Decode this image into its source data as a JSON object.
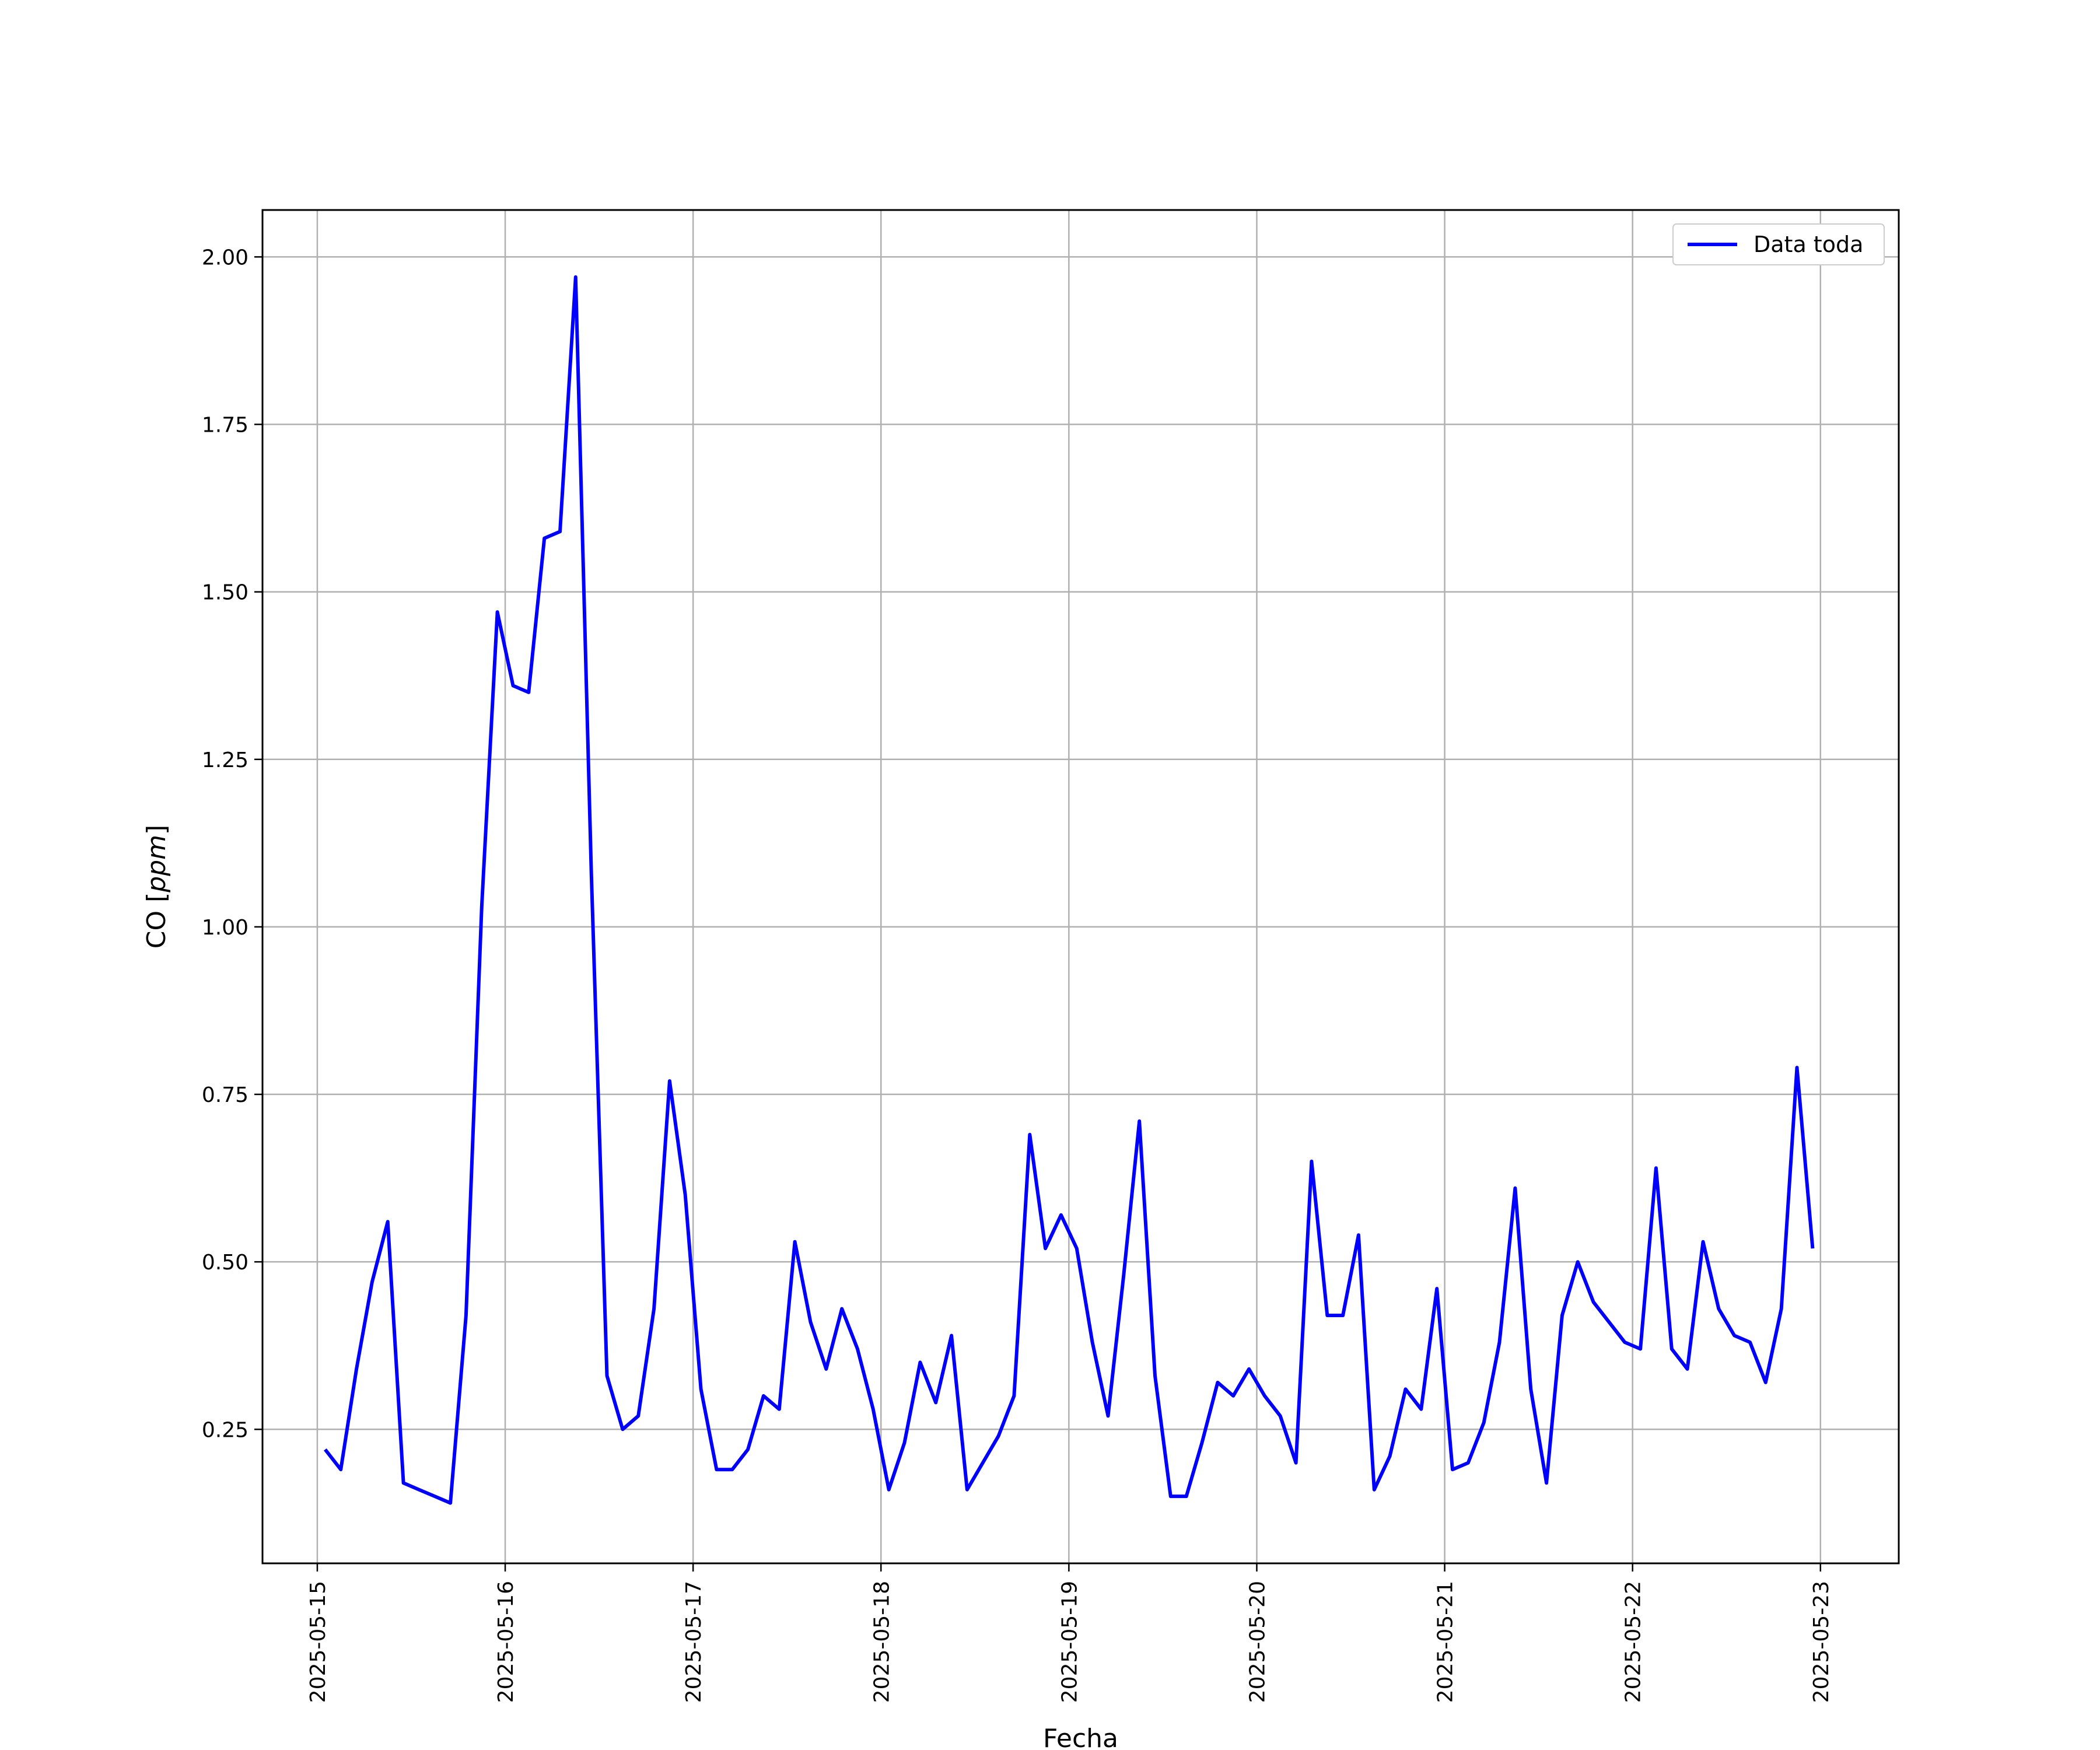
{
  "chart_data": {
    "type": "line",
    "xlabel": "Fecha",
    "ylabel_prefix": "CO [",
    "ylabel_unit": "ppm",
    "ylabel_suffix": "]",
    "grid": true,
    "legend_position": "top-right",
    "xlim": [
      "2025-05-14 17:00",
      "2025-05-23 10:00"
    ],
    "ylim": [
      0.05,
      2.07
    ],
    "x_ticks": [
      "2025-05-15",
      "2025-05-16",
      "2025-05-17",
      "2025-05-18",
      "2025-05-19",
      "2025-05-20",
      "2025-05-21",
      "2025-05-22",
      "2025-05-23"
    ],
    "y_ticks": [
      "0.25",
      "0.50",
      "0.75",
      "1.00",
      "1.25",
      "1.50",
      "1.75",
      "2.00"
    ],
    "series": [
      {
        "name": "Data toda",
        "color": "#0000ff",
        "x": [
          "2025-05-15 01:00",
          "2025-05-15 03:00",
          "2025-05-15 05:00",
          "2025-05-15 07:00",
          "2025-05-15 09:00",
          "2025-05-15 11:00",
          "2025-05-15 13:00",
          "2025-05-15 15:00",
          "2025-05-15 17:00",
          "2025-05-15 19:00",
          "2025-05-15 21:00",
          "2025-05-15 23:00",
          "2025-05-16 01:00",
          "2025-05-16 03:00",
          "2025-05-16 05:00",
          "2025-05-16 07:00",
          "2025-05-16 09:00",
          "2025-05-16 11:00",
          "2025-05-16 13:00",
          "2025-05-16 15:00",
          "2025-05-16 17:00",
          "2025-05-16 19:00",
          "2025-05-16 21:00",
          "2025-05-16 23:00",
          "2025-05-17 01:00",
          "2025-05-17 03:00",
          "2025-05-17 05:00",
          "2025-05-17 07:00",
          "2025-05-17 09:00",
          "2025-05-17 11:00",
          "2025-05-17 13:00",
          "2025-05-17 15:00",
          "2025-05-17 17:00",
          "2025-05-17 19:00",
          "2025-05-17 21:00",
          "2025-05-17 23:00",
          "2025-05-18 01:00",
          "2025-05-18 03:00",
          "2025-05-18 05:00",
          "2025-05-18 07:00",
          "2025-05-18 09:00",
          "2025-05-18 11:00",
          "2025-05-18 13:00",
          "2025-05-18 15:00",
          "2025-05-18 17:00",
          "2025-05-18 19:00",
          "2025-05-18 21:00",
          "2025-05-18 23:00",
          "2025-05-19 01:00",
          "2025-05-19 03:00",
          "2025-05-19 05:00",
          "2025-05-19 07:00",
          "2025-05-19 09:00",
          "2025-05-19 11:00",
          "2025-05-19 13:00",
          "2025-05-19 15:00",
          "2025-05-19 17:00",
          "2025-05-19 19:00",
          "2025-05-19 21:00",
          "2025-05-19 23:00",
          "2025-05-20 01:00",
          "2025-05-20 03:00",
          "2025-05-20 05:00",
          "2025-05-20 07:00",
          "2025-05-20 09:00",
          "2025-05-20 11:00",
          "2025-05-20 13:00",
          "2025-05-20 15:00",
          "2025-05-20 17:00",
          "2025-05-20 19:00",
          "2025-05-20 21:00",
          "2025-05-20 23:00",
          "2025-05-21 01:00",
          "2025-05-21 03:00",
          "2025-05-21 05:00",
          "2025-05-21 07:00",
          "2025-05-21 09:00",
          "2025-05-21 11:00",
          "2025-05-21 13:00",
          "2025-05-21 15:00",
          "2025-05-21 17:00",
          "2025-05-21 19:00",
          "2025-05-21 21:00",
          "2025-05-21 23:00",
          "2025-05-22 01:00",
          "2025-05-22 03:00",
          "2025-05-22 05:00",
          "2025-05-22 07:00",
          "2025-05-22 09:00",
          "2025-05-22 11:00",
          "2025-05-22 13:00",
          "2025-05-22 15:00",
          "2025-05-22 17:00",
          "2025-05-22 19:00",
          "2025-05-22 21:00",
          "2025-05-22 23:00"
        ],
        "y": [
          0.22,
          0.19,
          0.34,
          0.47,
          0.56,
          0.17,
          0.16,
          0.15,
          0.14,
          0.42,
          1.03,
          1.47,
          1.36,
          1.35,
          1.58,
          1.59,
          1.97,
          1.08,
          0.33,
          0.25,
          0.27,
          0.43,
          0.77,
          0.6,
          0.31,
          0.19,
          0.19,
          0.22,
          0.3,
          0.28,
          0.53,
          0.41,
          0.34,
          0.43,
          0.37,
          0.28,
          0.16,
          0.23,
          0.35,
          0.29,
          0.39,
          0.16,
          0.2,
          0.24,
          0.3,
          0.69,
          0.52,
          0.57,
          0.52,
          0.38,
          0.27,
          0.48,
          0.71,
          0.33,
          0.15,
          0.15,
          0.23,
          0.32,
          0.3,
          0.34,
          0.3,
          0.27,
          0.2,
          0.65,
          0.42,
          0.42,
          0.54,
          0.16,
          0.21,
          0.31,
          0.28,
          0.46,
          0.19,
          0.2,
          0.26,
          0.38,
          0.61,
          0.31,
          0.17,
          0.42,
          0.5,
          0.44,
          0.41,
          0.38,
          0.37,
          0.64,
          0.37,
          0.34,
          0.53,
          0.43,
          0.39,
          0.38,
          0.32,
          0.43,
          0.79,
          0.52
        ]
      }
    ]
  }
}
